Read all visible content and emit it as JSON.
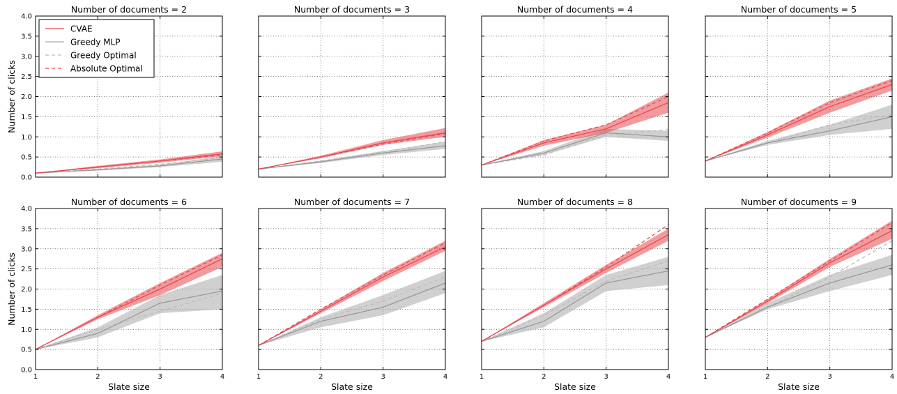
{
  "chart_data": {
    "type": "line",
    "shared": {
      "xlabel": "Slate size",
      "ylabel": "Number of clicks",
      "xlim": [
        1,
        4
      ],
      "ylim": [
        0,
        4
      ],
      "x_ticks": [
        1,
        2,
        3,
        4
      ],
      "y_ticks": [
        0.0,
        0.5,
        1.0,
        1.5,
        2.0,
        2.5,
        3.0,
        3.5,
        4.0
      ],
      "x_tick_labels": [
        "1",
        "2",
        "3",
        "4"
      ],
      "y_tick_labels": [
        "0.0",
        "0.5",
        "1.0",
        "1.5",
        "2.0",
        "2.5",
        "3.0",
        "3.5",
        "4.0"
      ],
      "grid": true,
      "legend_placement": "top-left",
      "x": [
        1,
        2,
        3,
        4
      ]
    },
    "legend": [
      {
        "name": "CVAE",
        "color": "#e8484f",
        "style": "solid"
      },
      {
        "name": "Greedy MLP",
        "color": "#aaaaaa",
        "style": "solid"
      },
      {
        "name": "Greedy Optimal",
        "color": "#bbbbbb",
        "style": "dashed"
      },
      {
        "name": "Absolute Optimal",
        "color": "#e8484f",
        "style": "dashed"
      }
    ],
    "panels": [
      {
        "title": "Number of documents = 2",
        "cvae": [
          0.1,
          0.25,
          0.4,
          0.58
        ],
        "cvae_band": [
          [
            0.1,
            0.1
          ],
          [
            0.22,
            0.28
          ],
          [
            0.36,
            0.44
          ],
          [
            0.52,
            0.64
          ]
        ],
        "mlp": [
          0.1,
          0.18,
          0.28,
          0.45
        ],
        "mlp_band": [
          [
            0.1,
            0.1
          ],
          [
            0.16,
            0.2
          ],
          [
            0.25,
            0.31
          ],
          [
            0.38,
            0.52
          ]
        ],
        "greedy_opt": [
          0.1,
          0.2,
          0.32,
          0.48
        ],
        "abs_opt": [
          0.1,
          0.25,
          0.4,
          0.55
        ]
      },
      {
        "title": "Number of documents = 3",
        "cvae": [
          0.2,
          0.5,
          0.85,
          1.1
        ],
        "cvae_band": [
          [
            0.2,
            0.2
          ],
          [
            0.47,
            0.53
          ],
          [
            0.8,
            0.92
          ],
          [
            1.0,
            1.22
          ]
        ],
        "mlp": [
          0.2,
          0.38,
          0.6,
          0.78
        ],
        "mlp_band": [
          [
            0.2,
            0.2
          ],
          [
            0.35,
            0.41
          ],
          [
            0.55,
            0.65
          ],
          [
            0.7,
            0.88
          ]
        ],
        "greedy_opt": [
          0.2,
          0.4,
          0.62,
          0.88
        ],
        "abs_opt": [
          0.2,
          0.5,
          0.82,
          1.08
        ]
      },
      {
        "title": "Number of documents = 4",
        "cvae": [
          0.3,
          0.85,
          1.2,
          1.85
        ],
        "cvae_band": [
          [
            0.3,
            0.3
          ],
          [
            0.78,
            0.92
          ],
          [
            1.1,
            1.3
          ],
          [
            1.6,
            2.1
          ]
        ],
        "mlp": [
          0.3,
          0.6,
          1.1,
          1.0
        ],
        "mlp_band": [
          [
            0.3,
            0.3
          ],
          [
            0.55,
            0.65
          ],
          [
            1.0,
            1.2
          ],
          [
            0.9,
            1.15
          ]
        ],
        "greedy_opt": [
          0.3,
          0.55,
          1.05,
          1.18
        ],
        "abs_opt": [
          0.3,
          0.9,
          1.3,
          2.0
        ]
      },
      {
        "title": "Number of documents = 5",
        "cvae": [
          0.4,
          1.05,
          1.75,
          2.3
        ],
        "cvae_band": [
          [
            0.4,
            0.4
          ],
          [
            0.98,
            1.12
          ],
          [
            1.6,
            1.9
          ],
          [
            2.15,
            2.45
          ]
        ],
        "mlp": [
          0.4,
          0.85,
          1.15,
          1.5
        ],
        "mlp_band": [
          [
            0.4,
            0.4
          ],
          [
            0.8,
            0.9
          ],
          [
            1.05,
            1.3
          ],
          [
            1.2,
            1.8
          ]
        ],
        "greedy_opt": [
          0.4,
          0.85,
          1.3,
          1.55
        ],
        "abs_opt": [
          0.4,
          1.1,
          1.85,
          2.4
        ]
      },
      {
        "title": "Number of documents = 6",
        "cvae": [
          0.5,
          1.3,
          2.0,
          2.75
        ],
        "cvae_band": [
          [
            0.5,
            0.5
          ],
          [
            1.25,
            1.35
          ],
          [
            1.85,
            2.15
          ],
          [
            2.55,
            2.9
          ]
        ],
        "mlp": [
          0.5,
          0.9,
          1.65,
          1.95
        ],
        "mlp_band": [
          [
            0.5,
            0.5
          ],
          [
            0.8,
            1.05
          ],
          [
            1.4,
            1.85
          ],
          [
            1.5,
            2.35
          ]
        ],
        "greedy_opt": [
          0.5,
          1.0,
          1.45,
          1.9
        ],
        "abs_opt": [
          0.5,
          1.3,
          2.1,
          2.85
        ]
      },
      {
        "title": "Number of documents = 7",
        "cvae": [
          0.6,
          1.45,
          2.3,
          3.05
        ],
        "cvae_band": [
          [
            0.6,
            0.6
          ],
          [
            1.4,
            1.5
          ],
          [
            2.2,
            2.4
          ],
          [
            2.95,
            3.2
          ]
        ],
        "mlp": [
          0.6,
          1.2,
          1.55,
          2.15
        ],
        "mlp_band": [
          [
            0.6,
            0.6
          ],
          [
            1.05,
            1.3
          ],
          [
            1.35,
            1.85
          ],
          [
            1.9,
            2.45
          ]
        ],
        "greedy_opt": [
          0.6,
          1.25,
          1.7,
          2.3
        ],
        "abs_opt": [
          0.6,
          1.5,
          2.35,
          3.15
        ]
      },
      {
        "title": "Number of documents = 8",
        "cvae": [
          0.7,
          1.6,
          2.5,
          3.35
        ],
        "cvae_band": [
          [
            0.7,
            0.7
          ],
          [
            1.55,
            1.65
          ],
          [
            2.4,
            2.6
          ],
          [
            3.2,
            3.5
          ]
        ],
        "mlp": [
          0.7,
          1.2,
          2.15,
          2.45
        ],
        "mlp_band": [
          [
            0.7,
            0.7
          ],
          [
            1.05,
            1.4
          ],
          [
            1.95,
            2.35
          ],
          [
            2.1,
            2.8
          ]
        ],
        "greedy_opt": [
          0.7,
          1.35,
          2.2,
          2.7
        ],
        "abs_opt": [
          0.7,
          1.6,
          2.55,
          3.6
        ]
      },
      {
        "title": "Number of documents = 9",
        "cvae": [
          0.8,
          1.7,
          2.65,
          3.45
        ],
        "cvae_band": [
          [
            0.8,
            0.8
          ],
          [
            1.65,
            1.75
          ],
          [
            2.55,
            2.75
          ],
          [
            3.25,
            3.7
          ]
        ],
        "mlp": [
          0.8,
          1.55,
          2.15,
          2.6
        ],
        "mlp_band": [
          [
            0.8,
            0.8
          ],
          [
            1.5,
            1.65
          ],
          [
            1.95,
            2.35
          ],
          [
            2.35,
            2.85
          ]
        ],
        "greedy_opt": [
          0.8,
          1.55,
          2.3,
          3.2
        ],
        "abs_opt": [
          0.8,
          1.75,
          2.7,
          3.65
        ]
      }
    ]
  }
}
